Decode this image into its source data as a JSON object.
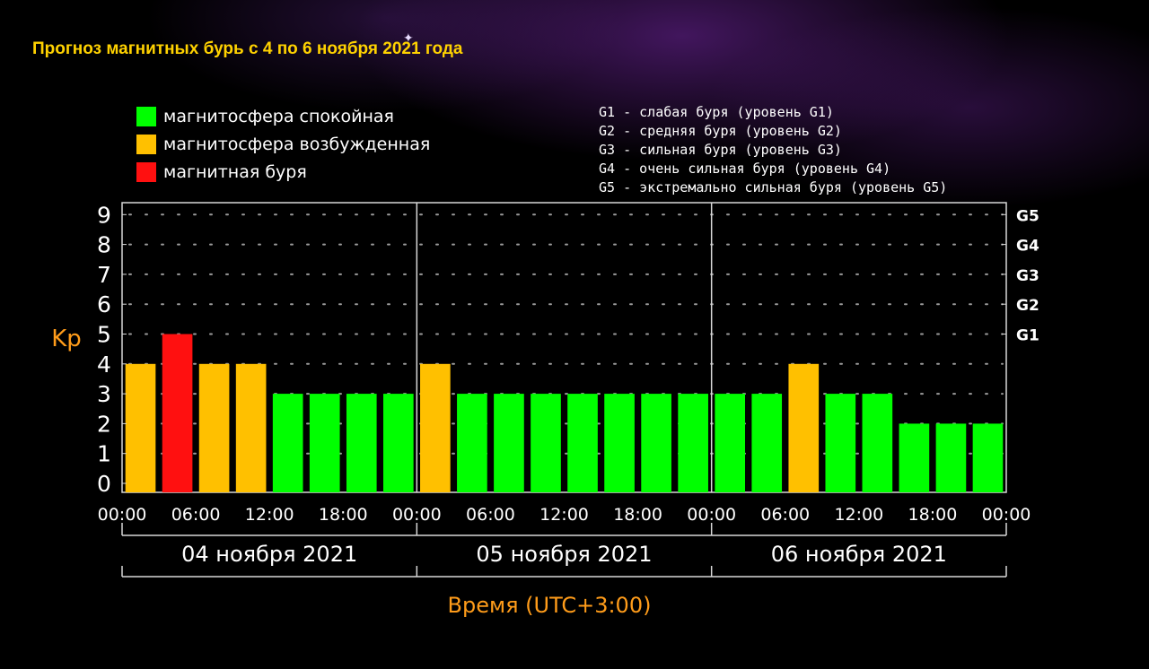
{
  "chart_data": {
    "type": "bar",
    "title": "Прогноз магнитных бурь с 4 по 6 ноября 2021 года",
    "ylabel": "Kp",
    "xlabel": "Время (UTC+3:00)",
    "ylim": [
      0,
      9
    ],
    "y_ticks": [
      "0",
      "1",
      "2",
      "3",
      "4",
      "5",
      "6",
      "7",
      "8",
      "9"
    ],
    "g_ticks": [
      {
        "label": "G1",
        "kp": 5
      },
      {
        "label": "G2",
        "kp": 6
      },
      {
        "label": "G3",
        "kp": 7
      },
      {
        "label": "G4",
        "kp": 8
      },
      {
        "label": "G5",
        "kp": 9
      }
    ],
    "x_tick_labels": [
      "00:00",
      "06:00",
      "12:00",
      "18:00",
      "00:00",
      "06:00",
      "12:00",
      "18:00",
      "00:00",
      "06:00",
      "12:00",
      "18:00",
      "00:00"
    ],
    "days": [
      "04 ноября 2021",
      "05 ноября 2021",
      "06 ноября 2021"
    ],
    "values": [
      4,
      5,
      4,
      4,
      3,
      3,
      3,
      3,
      4,
      3,
      3,
      3,
      3,
      3,
      3,
      3,
      3,
      3,
      4,
      3,
      3,
      2,
      2,
      2
    ],
    "grid": true,
    "level_colors": {
      "calm": "#00ff00",
      "excited": "#ffc000",
      "storm": "#ff1010"
    }
  },
  "legend": [
    {
      "label": "магнитосфера спокойная",
      "color": "#00ff00"
    },
    {
      "label": "магнитосфера возбужденная",
      "color": "#ffc000"
    },
    {
      "label": "магнитная буря",
      "color": "#ff1010"
    }
  ],
  "g_legend": [
    "G1 - слабая буря (уровень G1)",
    "G2 - средняя буря (уровень G2)",
    "G3 - сильная буря (уровень G3)",
    "G4 - очень сильная буря (уровень G4)",
    "G5 - экстремально сильная буря (уровень G5)"
  ]
}
